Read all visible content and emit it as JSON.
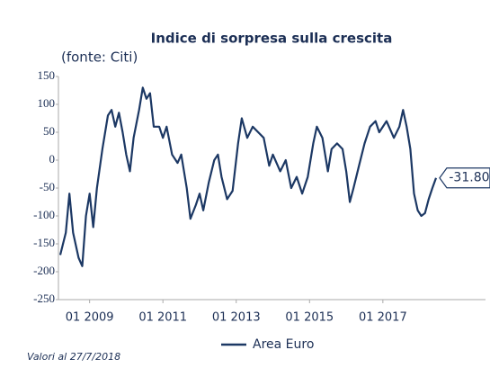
{
  "chart_data": {
    "type": "line",
    "title": "Indice di sorpresa sulla crescita",
    "subtitle": "(fonte: Citi)",
    "footnote": "Valori al 27/7/2018",
    "x": [
      2008.2,
      2008.35,
      2008.45,
      2008.55,
      2008.7,
      2008.8,
      2008.9,
      2009.0,
      2009.1,
      2009.2,
      2009.35,
      2009.5,
      2009.6,
      2009.7,
      2009.8,
      2009.9,
      2010.0,
      2010.1,
      2010.2,
      2010.35,
      2010.45,
      2010.55,
      2010.65,
      2010.75,
      2010.9,
      2011.0,
      2011.1,
      2011.25,
      2011.4,
      2011.5,
      2011.65,
      2011.75,
      2011.9,
      2012.0,
      2012.1,
      2012.25,
      2012.4,
      2012.5,
      2012.6,
      2012.75,
      2012.9,
      2013.05,
      2013.15,
      2013.3,
      2013.45,
      2013.6,
      2013.75,
      2013.9,
      2014.0,
      2014.2,
      2014.35,
      2014.5,
      2014.65,
      2014.8,
      2014.95,
      2015.1,
      2015.2,
      2015.35,
      2015.5,
      2015.6,
      2015.75,
      2015.9,
      2016.0,
      2016.1,
      2016.2,
      2016.35,
      2016.5,
      2016.65,
      2016.8,
      2016.9,
      2017.1,
      2017.3,
      2017.45,
      2017.55,
      2017.65,
      2017.75,
      2017.85,
      2017.95,
      2018.05,
      2018.15,
      2018.25,
      2018.35,
      2018.45
    ],
    "series": [
      {
        "name": "Area Euro",
        "color": "#1c3864",
        "values": [
          -170,
          -130,
          -60,
          -130,
          -175,
          -190,
          -100,
          -60,
          -120,
          -50,
          20,
          80,
          90,
          60,
          85,
          50,
          10,
          -20,
          40,
          90,
          130,
          110,
          120,
          60,
          60,
          40,
          60,
          10,
          -5,
          10,
          -50,
          -105,
          -80,
          -60,
          -90,
          -40,
          0,
          10,
          -30,
          -70,
          -55,
          30,
          75,
          40,
          60,
          50,
          40,
          -10,
          10,
          -20,
          0,
          -50,
          -30,
          -60,
          -30,
          30,
          60,
          40,
          -20,
          20,
          30,
          20,
          -20,
          -75,
          -50,
          -10,
          30,
          60,
          70,
          50,
          70,
          40,
          60,
          90,
          60,
          20,
          -60,
          -90,
          -100,
          -95,
          -70,
          -50,
          -31.8
        ]
      }
    ],
    "annotations": [
      {
        "text": "-31.80",
        "x": 2018.45,
        "y": -31.8
      }
    ],
    "xlim": [
      2008.15,
      2019.8
    ],
    "xticks": [
      {
        "value": 2009,
        "label": "01 2009"
      },
      {
        "value": 2011,
        "label": "01 2011"
      },
      {
        "value": 2013,
        "label": "01 2013"
      },
      {
        "value": 2015,
        "label": "01 2015"
      },
      {
        "value": 2017,
        "label": "01 2017"
      }
    ],
    "ylim": [
      -250,
      150
    ],
    "yticks": [
      150,
      100,
      50,
      0,
      -50,
      -100,
      -150,
      -200,
      -250
    ],
    "grid": false
  }
}
